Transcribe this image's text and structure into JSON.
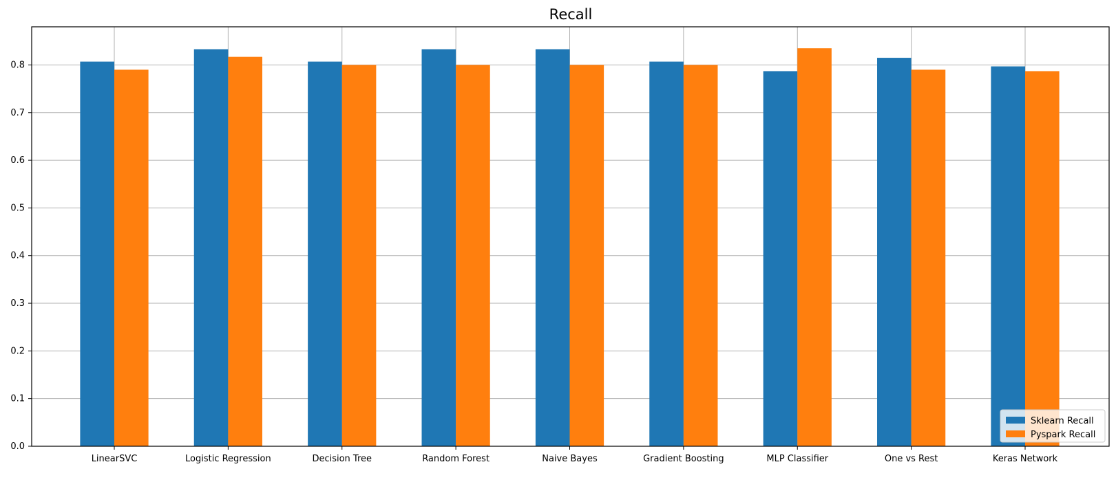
{
  "chart_data": {
    "type": "bar",
    "title": "Recall",
    "xlabel": "",
    "ylabel": "",
    "ylim": [
      0,
      0.88
    ],
    "yticks": [
      "0.0",
      "0.1",
      "0.2",
      "0.3",
      "0.4",
      "0.5",
      "0.6",
      "0.7",
      "0.8"
    ],
    "grid": true,
    "legend_position": "lower-right",
    "categories": [
      "LinearSVC",
      "Logistic Regression",
      "Decision Tree",
      "Random Forest",
      "Naive Bayes",
      "Gradient Boosting",
      "MLP Classifier",
      "One vs Rest",
      "Keras Network"
    ],
    "series": [
      {
        "name": "Sklearn Recall",
        "color": "#1f77b4",
        "values": [
          0.807,
          0.833,
          0.807,
          0.833,
          0.833,
          0.807,
          0.787,
          0.815,
          0.797
        ]
      },
      {
        "name": "Pyspark Recall",
        "color": "#ff7f0e",
        "values": [
          0.79,
          0.817,
          0.8,
          0.8,
          0.8,
          0.8,
          0.835,
          0.79,
          0.787
        ]
      }
    ]
  }
}
